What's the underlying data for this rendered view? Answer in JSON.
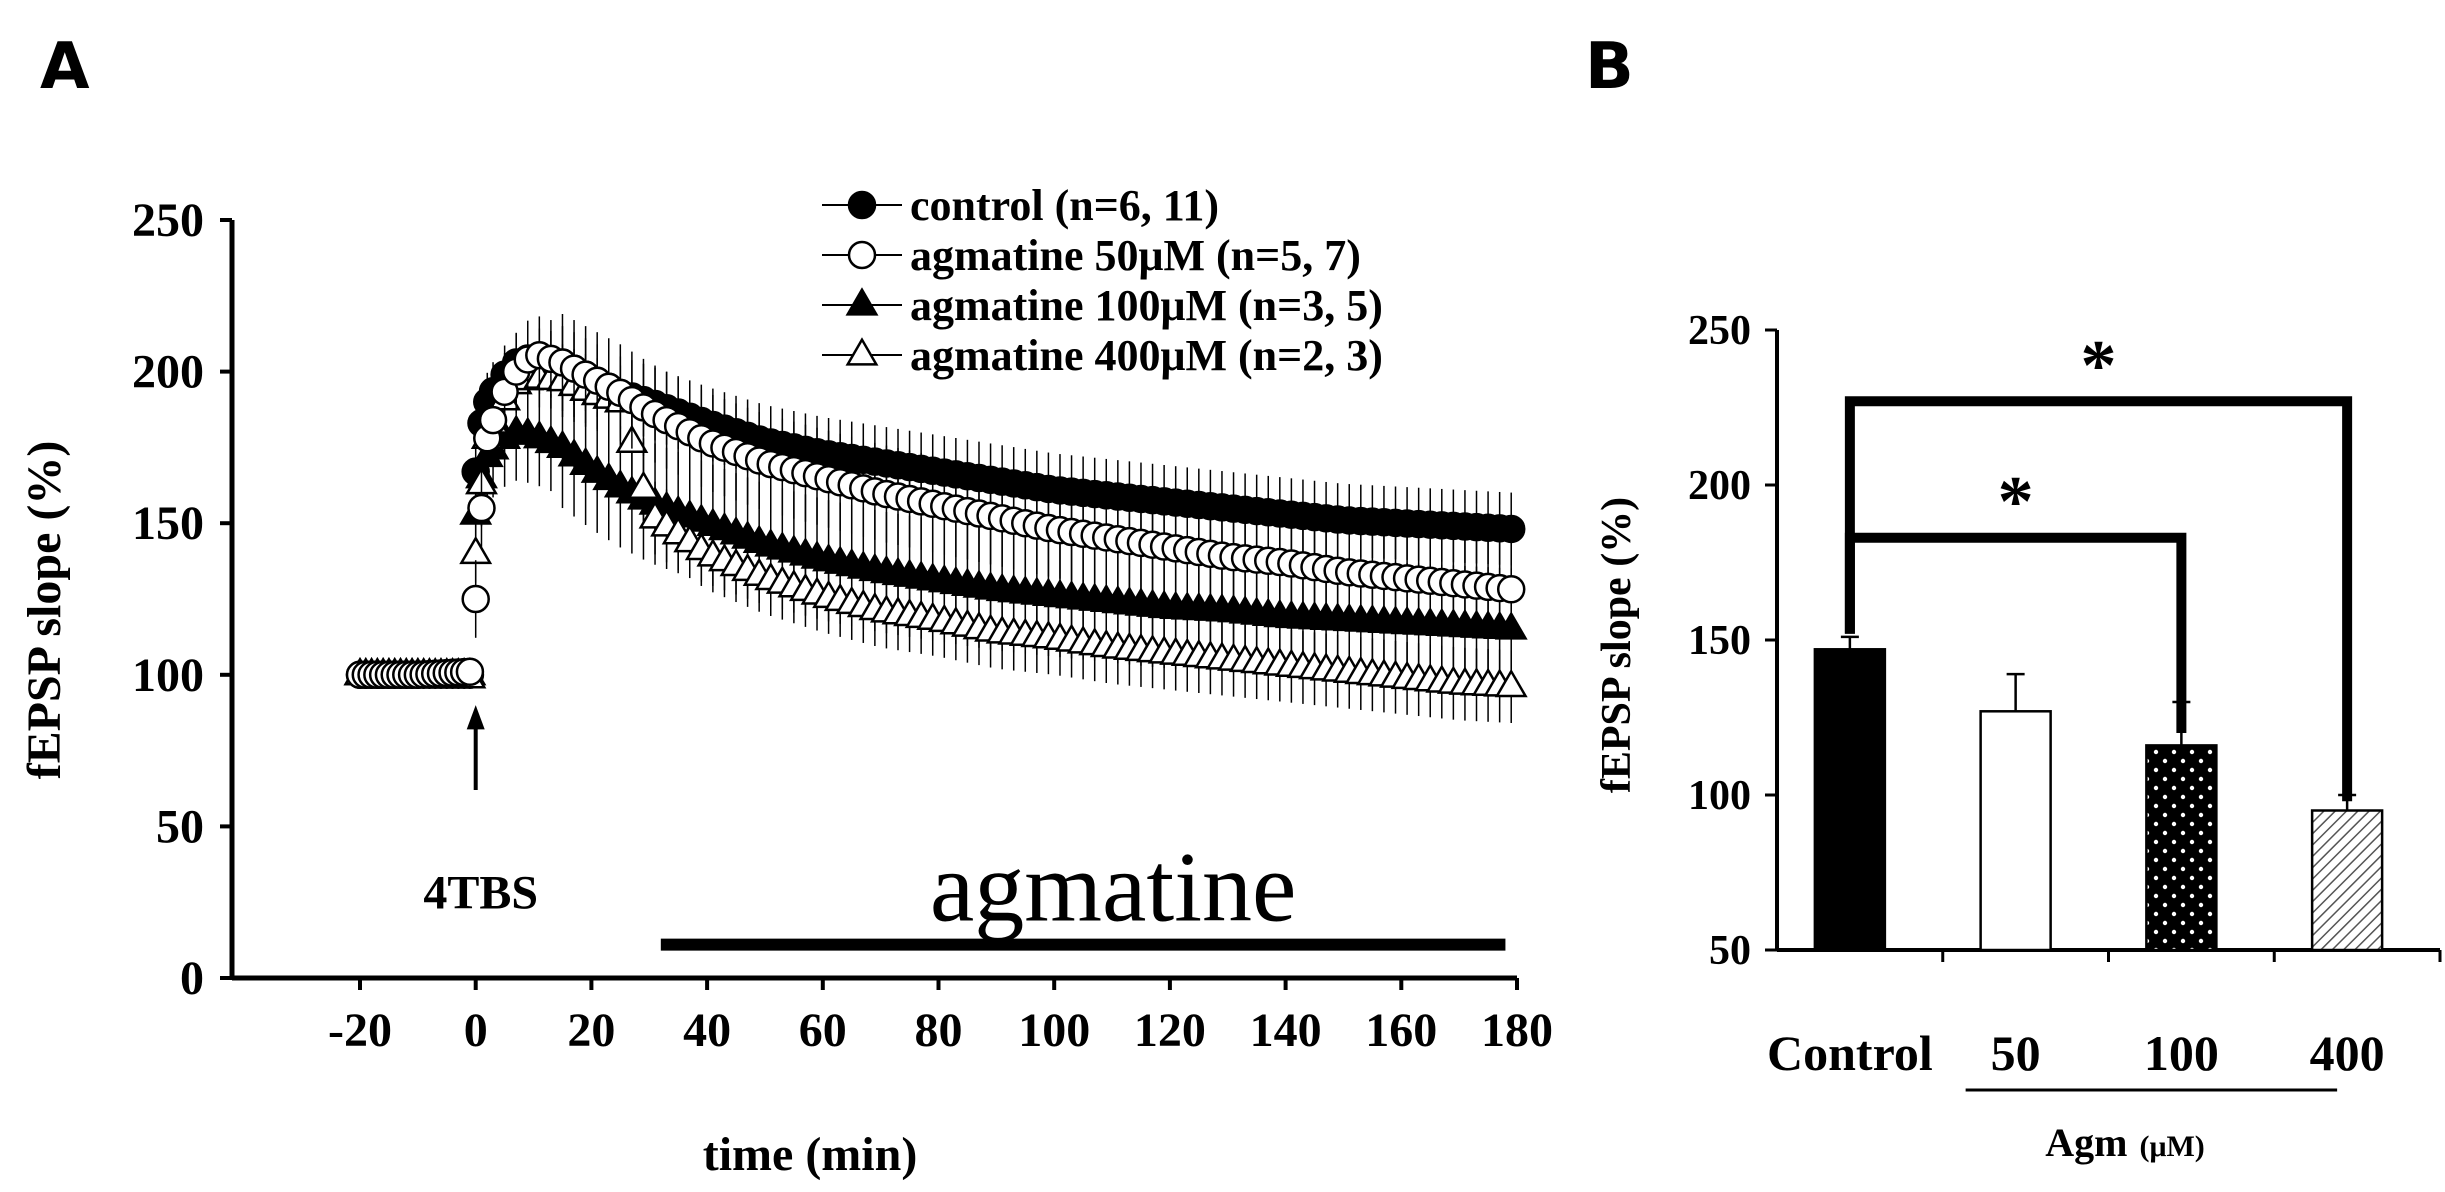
{
  "panels": {
    "a_label": "A",
    "b_label": "B"
  },
  "chart_data": [
    {
      "type": "scatter",
      "xlabel": "time (min)",
      "ylabel": "fEPSP slope (%)",
      "xlim": [
        -20,
        180
      ],
      "ylim": [
        0,
        250
      ],
      "x_ticks": [
        "-20",
        "0",
        "20",
        "40",
        "60",
        "80",
        "100",
        "120",
        "140",
        "160",
        "180"
      ],
      "y_ticks": [
        "0",
        "50",
        "100",
        "150",
        "200",
        "250"
      ],
      "annotations": {
        "stimulus": "4TBS",
        "stimulus_time": 0,
        "drug_bar_label": "agmatine",
        "drug_bar_range": [
          32,
          178
        ]
      },
      "legend_position": "top-right",
      "series": [
        {
          "name": "control (n=6, 11)",
          "marker": "filled-circle",
          "points": [
            [
              -20,
              100
            ],
            [
              -10,
              100
            ],
            [
              -1,
              100
            ],
            [
              0,
              167
            ],
            [
              1,
              183
            ],
            [
              2,
              190
            ],
            [
              4,
              197
            ],
            [
              7,
              203
            ],
            [
              10,
              205
            ],
            [
              15,
              203
            ],
            [
              20,
              198
            ],
            [
              25,
              193
            ],
            [
              30,
              190
            ],
            [
              40,
              183
            ],
            [
              50,
              177
            ],
            [
              60,
              173
            ],
            [
              70,
              170
            ],
            [
              80,
              167
            ],
            [
              90,
              164
            ],
            [
              100,
              161
            ],
            [
              110,
              159
            ],
            [
              120,
              157
            ],
            [
              130,
              155
            ],
            [
              140,
              153
            ],
            [
              150,
              151
            ],
            [
              160,
              150
            ],
            [
              170,
              149
            ],
            [
              180,
              148
            ]
          ],
          "error": 12
        },
        {
          "name": "agmatine 50μM (n=5, 7)",
          "marker": "open-circle",
          "points": [
            [
              -20,
              100
            ],
            [
              -10,
              100
            ],
            [
              -1,
              101
            ],
            [
              0,
              125
            ],
            [
              1,
              155
            ],
            [
              2,
              178
            ],
            [
              4,
              190
            ],
            [
              7,
              200
            ],
            [
              10,
              206
            ],
            [
              15,
              203
            ],
            [
              20,
              198
            ],
            [
              25,
              193
            ],
            [
              30,
              187
            ],
            [
              40,
              177
            ],
            [
              50,
              170
            ],
            [
              60,
              165
            ],
            [
              70,
              160
            ],
            [
              80,
              156
            ],
            [
              90,
              152
            ],
            [
              100,
              148
            ],
            [
              110,
              145
            ],
            [
              120,
              142
            ],
            [
              130,
              139
            ],
            [
              140,
              137
            ],
            [
              150,
              134
            ],
            [
              160,
              132
            ],
            [
              170,
              130
            ],
            [
              180,
              128
            ]
          ],
          "error": 16
        },
        {
          "name": "agmatine 100μM (n=3, 5)",
          "marker": "filled-triangle",
          "points": [
            [
              -20,
              100
            ],
            [
              -10,
              100
            ],
            [
              -1,
              100
            ],
            [
              0,
              153
            ],
            [
              1,
              165
            ],
            [
              2,
              172
            ],
            [
              4,
              177
            ],
            [
              7,
              180
            ],
            [
              10,
              179
            ],
            [
              15,
              175
            ],
            [
              20,
              168
            ],
            [
              25,
              162
            ],
            [
              30,
              157
            ],
            [
              40,
              150
            ],
            [
              50,
              143
            ],
            [
              60,
              138
            ],
            [
              70,
              134
            ],
            [
              80,
              131
            ],
            [
              90,
              128
            ],
            [
              100,
              126
            ],
            [
              110,
              124
            ],
            [
              120,
              122
            ],
            [
              130,
              121
            ],
            [
              140,
              119
            ],
            [
              150,
              118
            ],
            [
              160,
              117
            ],
            [
              170,
              116
            ],
            [
              180,
              115
            ]
          ],
          "error": 20
        },
        {
          "name": "agmatine 400μM (n=2, 3)",
          "marker": "open-triangle",
          "points": [
            [
              -20,
              100
            ],
            [
              -10,
              100
            ],
            [
              -1,
              99
            ],
            [
              0,
              140
            ],
            [
              1,
              163
            ],
            [
              2,
              178
            ],
            [
              4,
              188
            ],
            [
              7,
              196
            ],
            [
              10,
              198
            ],
            [
              15,
              197
            ],
            [
              20,
              193
            ],
            [
              25,
              190
            ],
            [
              28,
              170
            ],
            [
              30,
              153
            ],
            [
              40,
              140
            ],
            [
              50,
              132
            ],
            [
              60,
              126
            ],
            [
              70,
              121
            ],
            [
              80,
              118
            ],
            [
              90,
              114
            ],
            [
              100,
              112
            ],
            [
              110,
              109
            ],
            [
              120,
              107
            ],
            [
              130,
              105
            ],
            [
              140,
              103
            ],
            [
              150,
              101
            ],
            [
              160,
              99
            ],
            [
              170,
              97
            ],
            [
              180,
              96
            ]
          ],
          "error": 12
        }
      ]
    },
    {
      "type": "bar",
      "ylabel": "fEPSP slope (%)",
      "ylim": [
        50,
        250
      ],
      "y_ticks": [
        "50",
        "100",
        "150",
        "200",
        "250"
      ],
      "categories": [
        "Control",
        "50",
        "100",
        "400"
      ],
      "group_label": "Agm",
      "group_unit": "(μM)",
      "values": [
        147,
        127,
        116,
        95
      ],
      "errors": [
        4,
        12,
        14,
        5
      ],
      "fills": [
        "solid-black",
        "white",
        "dotted",
        "hatched"
      ],
      "significance": [
        {
          "from": "Control",
          "to": "100",
          "label": "*"
        },
        {
          "from": "Control",
          "to": "400",
          "label": "*"
        }
      ]
    }
  ]
}
